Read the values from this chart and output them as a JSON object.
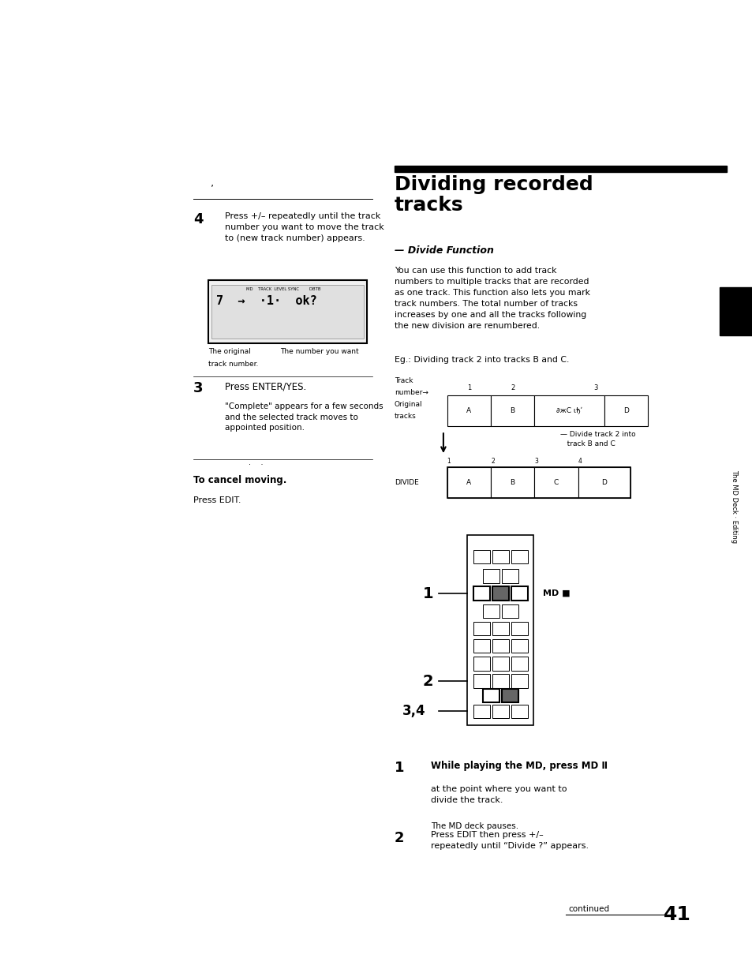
{
  "bg_color": "#ffffff",
  "page_width": 9.54,
  "page_height": 12.33,
  "dpi": 100,
  "title": "Dividing recorded\ntracks",
  "subtitle": "— Divide Function",
  "divide_intro": "You can use this function to add track\nnumbers to multiple tracks that are recorded\nas one track. This function also lets you mark\ntrack numbers. The total number of tracks\nincreases by one and all the tracks following\nthe new division are renumbered.",
  "eg_text": "Eg.: Dividing track 2 into tracks B and C.",
  "step4_text": "Press +/– repeatedly until the track\nnumber you want to move the track\nto (new track number) appears.",
  "step3_text": "Press ENTER/YES.",
  "step3_sub": "\"Complete\" appears for a few seconds\nand the selected track moves to\nappointed position.",
  "cancel_bold": "To cancel moving.",
  "cancel_text": "Press EDIT.",
  "step1_bold": "While playing the MD, press MD Ⅱ",
  "step1_body": "at the point where you want to\ndivide the track.",
  "step1_sub": "The MD deck pauses.",
  "step2_text": "Press EDIT then press +/–\nrepeatedly until “Divide ?” appears.",
  "continued_text": "continued",
  "page_num": "41",
  "sidebar_text": "The MD Deck · Editing"
}
